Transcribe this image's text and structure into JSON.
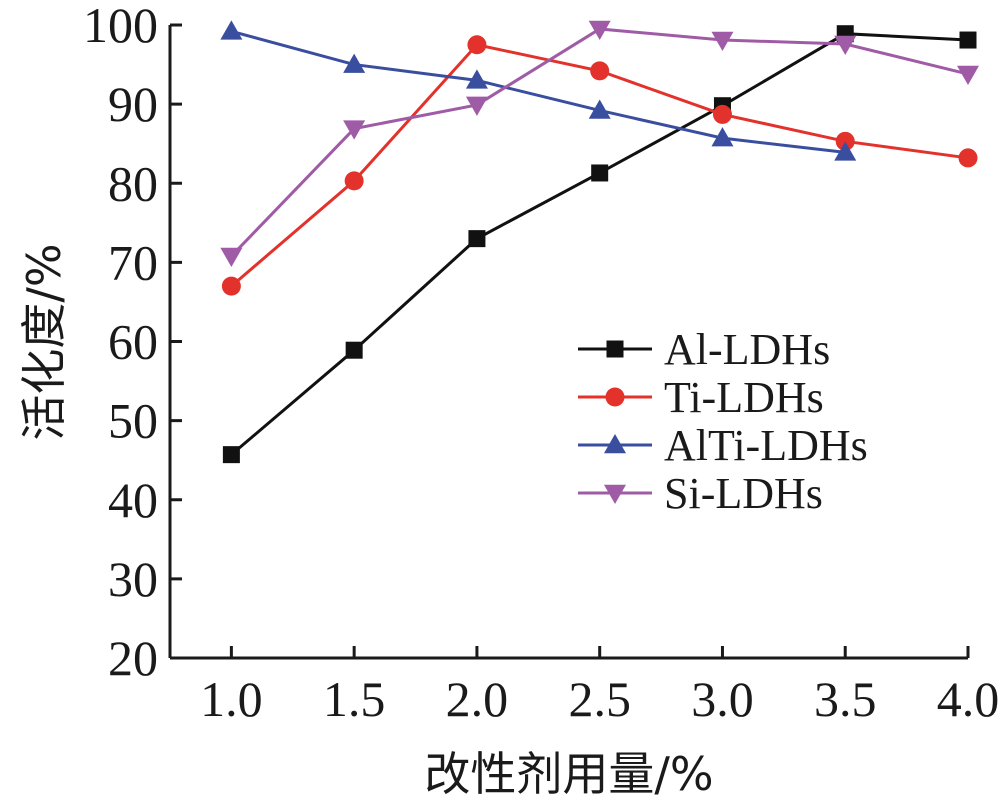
{
  "chart_data": {
    "type": "line",
    "xlabel": "改性剂用量/%",
    "ylabel": "活化度/%",
    "x": [
      1.0,
      1.5,
      2.0,
      2.5,
      3.0,
      3.5,
      4.0
    ],
    "x_tick_labels": [
      "1.0",
      "1.5",
      "2.0",
      "2.5",
      "3.0",
      "3.5",
      "4.0"
    ],
    "y_tick_labels": [
      "20",
      "30",
      "40",
      "50",
      "60",
      "70",
      "80",
      "90",
      "100"
    ],
    "xlim": [
      0.75,
      4.0
    ],
    "ylim": [
      20,
      100
    ],
    "grid": false,
    "legend_position": "center-right",
    "series": [
      {
        "name": "Al-LDHs",
        "color": "#111111",
        "marker": "square",
        "x": [
          1.0,
          1.5,
          2.0,
          2.5,
          3.0,
          3.5,
          4.0
        ],
        "values": [
          45.7,
          58.9,
          73.0,
          81.3,
          89.8,
          98.9,
          98.1
        ]
      },
      {
        "name": "Ti-LDHs",
        "color": "#e3322b",
        "marker": "circle",
        "x": [
          1.0,
          1.5,
          2.0,
          2.5,
          3.0,
          3.5,
          4.0
        ],
        "values": [
          67.0,
          80.3,
          97.5,
          94.2,
          88.7,
          85.3,
          83.2
        ]
      },
      {
        "name": "AlTi-LDHs",
        "color": "#3a4ea0",
        "marker": "triangle-up",
        "x": [
          1.0,
          1.5,
          2.0,
          2.5,
          3.0,
          3.5
        ],
        "values": [
          99.2,
          95.0,
          93.0,
          89.2,
          85.7,
          83.9
        ]
      },
      {
        "name": "Si-LDHs",
        "color": "#a05ba6",
        "marker": "triangle-down",
        "x": [
          1.0,
          1.5,
          2.0,
          2.5,
          3.0,
          3.5,
          4.0
        ],
        "values": [
          70.8,
          86.9,
          89.9,
          99.5,
          98.1,
          97.6,
          93.8
        ]
      }
    ]
  }
}
